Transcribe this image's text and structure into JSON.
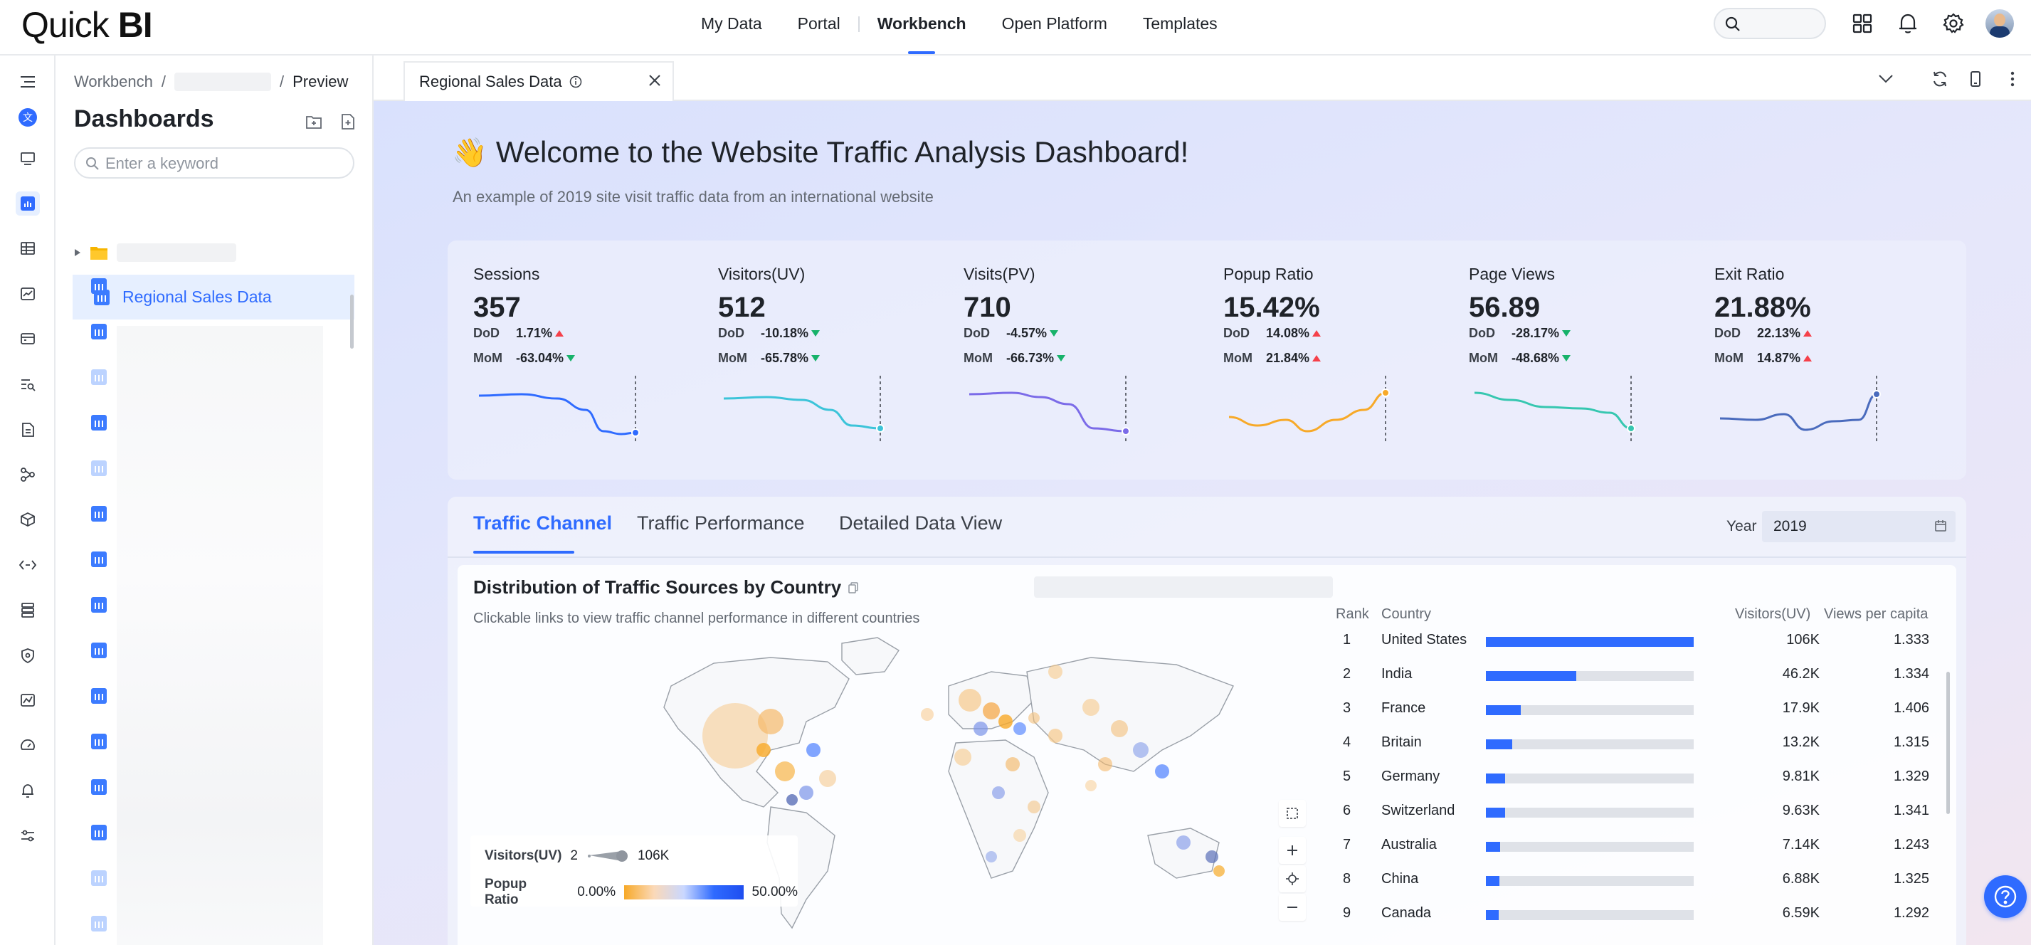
{
  "app": {
    "logo_light": "Quick ",
    "logo_bold": "BI"
  },
  "nav": {
    "items": [
      "My Data",
      "Portal",
      "Workbench",
      "Open Platform",
      "Templates"
    ],
    "active": "Workbench"
  },
  "sidebar": {
    "breadcrumb": {
      "root": "Workbench",
      "sep": "/",
      "current": "Preview"
    },
    "title": "Dashboards",
    "search_placeholder": "Enter a keyword",
    "selected_item": "Regional Sales Data"
  },
  "tab": {
    "label": "Regional Sales Data"
  },
  "dashboard": {
    "title": "Welcome to the Website Traffic Analysis Dashboard!",
    "subtitle": "An example of 2019 site visit traffic data from an international website",
    "dod_label": "DoD",
    "mom_label": "MoM",
    "kpis": [
      {
        "label": "Sessions",
        "value": "357",
        "dod": "1.71%",
        "dod_dir": "up",
        "mom": "-63.04%",
        "mom_dir": "down",
        "color": "#2f6bff"
      },
      {
        "label": "Visitors(UV)",
        "value": "512",
        "dod": "-10.18%",
        "dod_dir": "down",
        "mom": "-65.78%",
        "mom_dir": "down",
        "color": "#3cc4d9"
      },
      {
        "label": "Visits(PV)",
        "value": "710",
        "dod": "-4.57%",
        "dod_dir": "down",
        "mom": "-66.73%",
        "mom_dir": "down",
        "color": "#7b6be8"
      },
      {
        "label": "Popup Ratio",
        "value": "15.42%",
        "dod": "14.08%",
        "dod_dir": "up",
        "mom": "21.84%",
        "mom_dir": "up",
        "color": "#f7a928"
      },
      {
        "label": "Page Views",
        "value": "56.89",
        "dod": "-28.17%",
        "dod_dir": "down",
        "mom": "-48.68%",
        "mom_dir": "down",
        "color": "#36c7b0"
      },
      {
        "label": "Exit Ratio",
        "value": "21.88%",
        "dod": "22.13%",
        "dod_dir": "up",
        "mom": "14.87%",
        "mom_dir": "up",
        "color": "#4a6bbd"
      }
    ],
    "tabs": [
      "Traffic Channel",
      "Traffic Performance",
      "Detailed Data View"
    ],
    "active_tab": "Traffic Channel",
    "year_label": "Year",
    "year_value": "2019",
    "chart": {
      "title": "Distribution of Traffic Sources by Country",
      "subtitle": "Clickable links to view traffic channel performance in different countries",
      "legend": {
        "size_label": "Visitors(UV)",
        "size_min": "2",
        "size_max": "106K",
        "color_label": "Popup Ratio",
        "color_min": "0.00%",
        "color_max": "50.00%"
      }
    },
    "table": {
      "headers": [
        "Rank",
        "Country",
        "Visitors(UV)",
        "Views per capita"
      ],
      "rows": [
        {
          "rank": "1",
          "country": "United States",
          "uv": "106K",
          "vpc": "1.333",
          "share": 1.0
        },
        {
          "rank": "2",
          "country": "India",
          "uv": "46.2K",
          "vpc": "1.334",
          "share": 0.436
        },
        {
          "rank": "3",
          "country": "France",
          "uv": "17.9K",
          "vpc": "1.406",
          "share": 0.169
        },
        {
          "rank": "4",
          "country": "Britain",
          "uv": "13.2K",
          "vpc": "1.315",
          "share": 0.125
        },
        {
          "rank": "5",
          "country": "Germany",
          "uv": "9.81K",
          "vpc": "1.329",
          "share": 0.093
        },
        {
          "rank": "6",
          "country": "Switzerland",
          "uv": "9.63K",
          "vpc": "1.341",
          "share": 0.091
        },
        {
          "rank": "7",
          "country": "Australia",
          "uv": "7.14K",
          "vpc": "1.243",
          "share": 0.067
        },
        {
          "rank": "8",
          "country": "China",
          "uv": "6.88K",
          "vpc": "1.325",
          "share": 0.065
        },
        {
          "rank": "9",
          "country": "Canada",
          "uv": "6.59K",
          "vpc": "1.292",
          "share": 0.062
        }
      ]
    }
  }
}
